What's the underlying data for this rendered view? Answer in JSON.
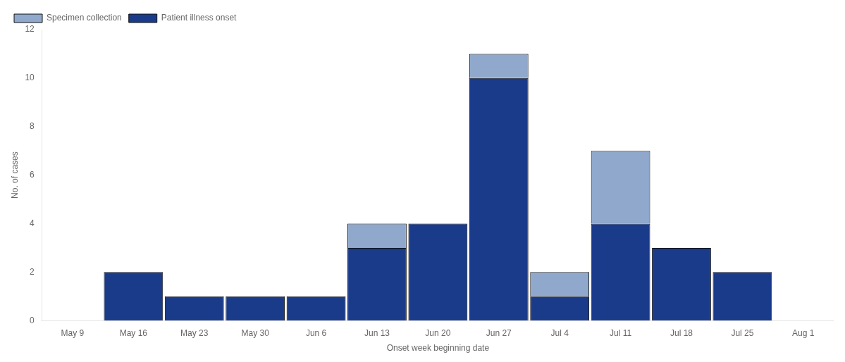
{
  "chart_data": {
    "type": "bar",
    "categories": [
      "May 9",
      "May 16",
      "May 23",
      "May 30",
      "Jun 6",
      "Jun 13",
      "Jun 20",
      "Jun 27",
      "Jul 4",
      "Jul 11",
      "Jul 18",
      "Jul 25",
      "Aug 1"
    ],
    "series": [
      {
        "name": "Patient illness onset",
        "color": "#1a3a8a",
        "values": [
          0,
          2,
          1,
          1,
          1,
          3,
          4,
          10,
          1,
          4,
          3,
          2,
          0
        ]
      },
      {
        "name": "Specimen collection",
        "color": "#8fa8cb",
        "values": [
          0,
          0,
          0,
          0,
          0,
          1,
          0,
          1,
          1,
          3,
          0,
          0,
          0
        ]
      }
    ],
    "xlabel": "Onset week beginning date",
    "ylabel": "No. of cases",
    "ylim": [
      0,
      12
    ],
    "yticks": [
      0,
      2,
      4,
      6,
      8,
      10,
      12
    ],
    "stacked": true,
    "grid": false,
    "legend": "upper left"
  }
}
